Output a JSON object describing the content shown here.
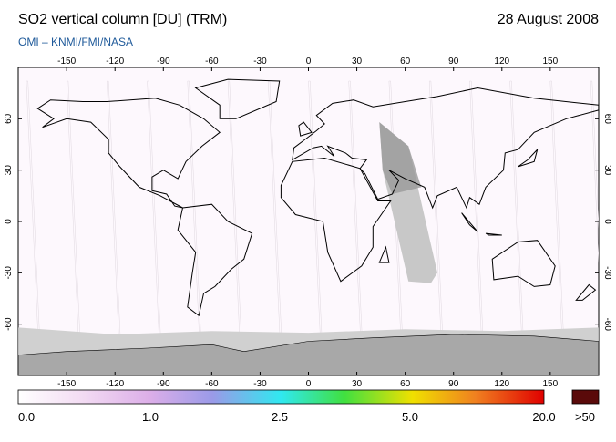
{
  "header": {
    "title": "SO2 vertical column [DU] (TRM)",
    "date": "28 August 2008",
    "subtitle": "OMI  –  KNMI/FMI/NASA"
  },
  "map": {
    "lon_ticks": [
      -150,
      -120,
      -90,
      -60,
      -30,
      0,
      30,
      60,
      90,
      120,
      150
    ],
    "lat_ticks": [
      60,
      30,
      0,
      -30,
      -60
    ]
  },
  "colorbar": {
    "labels": [
      "0.0",
      "1.0",
      "2.5",
      "5.0",
      "20.0"
    ],
    "overflow": ">50"
  }
}
